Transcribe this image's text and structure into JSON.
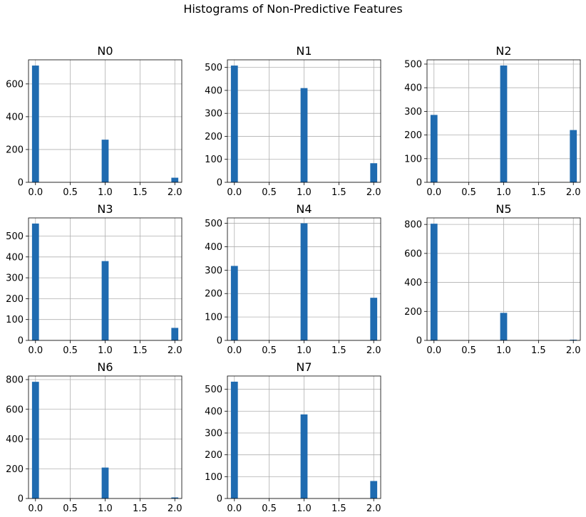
{
  "figure": {
    "title": "Histograms of Non-Predictive Features"
  },
  "chart_data": {
    "type": "bar",
    "suptitle": "Histograms of Non-Predictive Features",
    "bar_color": "#1f6bb0",
    "grid": true,
    "subplots": [
      {
        "title": "N0",
        "x": [
          0,
          1,
          2
        ],
        "counts": [
          712,
          260,
          28
        ],
        "xlim": [
          -0.1,
          2.1
        ],
        "ylim": [
          0,
          747
        ],
        "xticks": [
          "0.0",
          "0.5",
          "1.0",
          "1.5",
          "2.0"
        ],
        "yticks": [
          "0",
          "200",
          "400",
          "600"
        ],
        "ytick_values": [
          0,
          200,
          400,
          600
        ]
      },
      {
        "title": "N1",
        "x": [
          0,
          1,
          2
        ],
        "counts": [
          508,
          410,
          83
        ],
        "xlim": [
          -0.1,
          2.1
        ],
        "ylim": [
          0,
          533
        ],
        "xticks": [
          "0.0",
          "0.5",
          "1.0",
          "1.5",
          "2.0"
        ],
        "yticks": [
          "0",
          "100",
          "200",
          "300",
          "400",
          "500"
        ],
        "ytick_values": [
          0,
          100,
          200,
          300,
          400,
          500
        ]
      },
      {
        "title": "N2",
        "x": [
          0,
          1,
          2
        ],
        "counts": [
          285,
          494,
          221
        ],
        "xlim": [
          -0.1,
          2.1
        ],
        "ylim": [
          0,
          518
        ],
        "xticks": [
          "0.0",
          "0.5",
          "1.0",
          "1.5",
          "2.0"
        ],
        "yticks": [
          "0",
          "100",
          "200",
          "300",
          "400",
          "500"
        ],
        "ytick_values": [
          0,
          100,
          200,
          300,
          400,
          500
        ]
      },
      {
        "title": "N3",
        "x": [
          0,
          1,
          2
        ],
        "counts": [
          560,
          380,
          60
        ],
        "xlim": [
          -0.1,
          2.1
        ],
        "ylim": [
          0,
          587
        ],
        "xticks": [
          "0.0",
          "0.5",
          "1.0",
          "1.5",
          "2.0"
        ],
        "yticks": [
          "0",
          "100",
          "200",
          "300",
          "400",
          "500"
        ],
        "ytick_values": [
          0,
          100,
          200,
          300,
          400,
          500
        ]
      },
      {
        "title": "N4",
        "x": [
          0,
          1,
          2
        ],
        "counts": [
          318,
          500,
          182
        ],
        "xlim": [
          -0.1,
          2.1
        ],
        "ylim": [
          0,
          523
        ],
        "xticks": [
          "0.0",
          "0.5",
          "1.0",
          "1.5",
          "2.0"
        ],
        "yticks": [
          "0",
          "100",
          "200",
          "300",
          "400",
          "500"
        ],
        "ytick_values": [
          0,
          100,
          200,
          300,
          400,
          500
        ]
      },
      {
        "title": "N5",
        "x": [
          0,
          1,
          2
        ],
        "counts": [
          805,
          190,
          5
        ],
        "xlim": [
          -0.1,
          2.1
        ],
        "ylim": [
          0,
          845
        ],
        "xticks": [
          "0.0",
          "0.5",
          "1.0",
          "1.5",
          "2.0"
        ],
        "yticks": [
          "0",
          "200",
          "400",
          "600",
          "800"
        ],
        "ytick_values": [
          0,
          200,
          400,
          600,
          800
        ]
      },
      {
        "title": "N6",
        "x": [
          0,
          1,
          2
        ],
        "counts": [
          785,
          208,
          7
        ],
        "xlim": [
          -0.1,
          2.1
        ],
        "ylim": [
          0,
          824
        ],
        "xticks": [
          "0.0",
          "0.5",
          "1.0",
          "1.5",
          "2.0"
        ],
        "yticks": [
          "0",
          "200",
          "400",
          "600",
          "800"
        ],
        "ytick_values": [
          0,
          200,
          400,
          600,
          800
        ]
      },
      {
        "title": "N7",
        "x": [
          0,
          1,
          2
        ],
        "counts": [
          535,
          385,
          80
        ],
        "xlim": [
          -0.1,
          2.1
        ],
        "ylim": [
          0,
          561
        ],
        "xticks": [
          "0.0",
          "0.5",
          "1.0",
          "1.5",
          "2.0"
        ],
        "yticks": [
          "0",
          "100",
          "200",
          "300",
          "400",
          "500"
        ],
        "ytick_values": [
          0,
          100,
          200,
          300,
          400,
          500
        ]
      }
    ]
  }
}
